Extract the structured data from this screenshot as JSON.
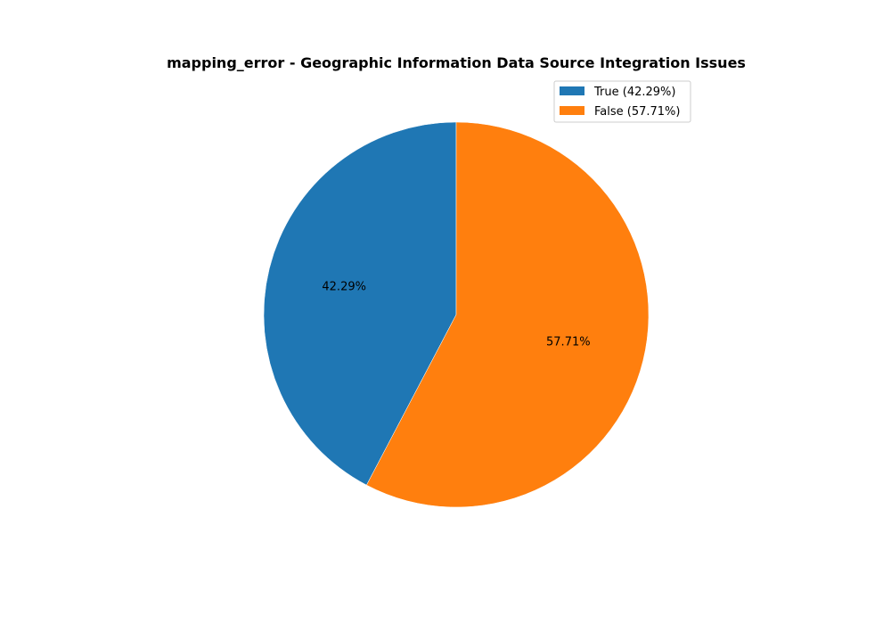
{
  "chart_data": {
    "type": "pie",
    "title": "mapping_error - Geographic Information Data Source Integration Issues",
    "labels": [
      "True",
      "False"
    ],
    "values": [
      42.29,
      57.71
    ],
    "slice_labels": [
      "42.29%",
      "57.71%"
    ],
    "legend_entries": [
      "True (42.29%)",
      "False (57.71%)"
    ],
    "colors": [
      "#1f77b4",
      "#ff7f0e"
    ],
    "start_angle_deg": 90,
    "direction": "counterclockwise",
    "legend_placement": "upper-right"
  }
}
